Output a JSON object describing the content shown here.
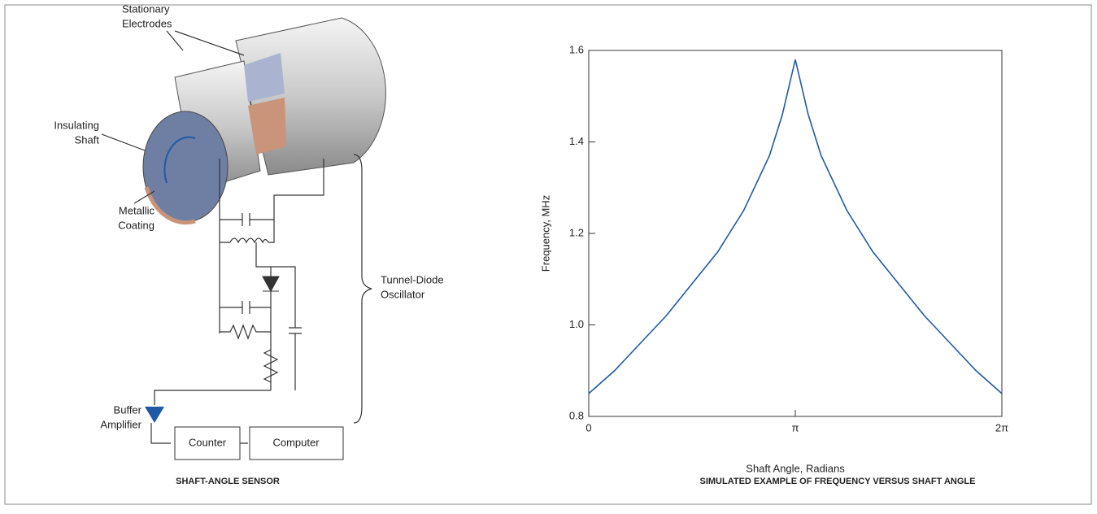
{
  "diagram": {
    "labels": {
      "stationary_electrodes": [
        "Stationary",
        "Electrodes"
      ],
      "insulating_shaft": [
        "Insulating",
        "Shaft"
      ],
      "metallic_coating": [
        "Metallic",
        "Coating"
      ],
      "tunnel_diode_oscillator": [
        "Tunnel-Diode",
        "Oscillator"
      ],
      "buffer_amplifier": [
        "Buffer",
        "Amplifier"
      ],
      "counter": "Counter",
      "computer": "Computer"
    },
    "caption": "SHAFT-ANGLE SENSOR"
  },
  "chart_data": {
    "type": "line",
    "caption": "SIMULATED EXAMPLE OF FREQUENCY VERSUS SHAFT ANGLE",
    "xlabel": "Shaft Angle, Radians",
    "ylabel": "Frequency, MHz",
    "x": [
      0,
      0.3927,
      0.7854,
      1.1781,
      1.5708,
      1.9635,
      2.3562,
      2.7489,
      2.9452,
      3.1416,
      3.3379,
      3.5343,
      3.927,
      4.3197,
      4.7124,
      5.1051,
      5.4978,
      5.8905,
      6.2832
    ],
    "values": [
      0.85,
      0.9,
      0.96,
      1.02,
      1.09,
      1.16,
      1.25,
      1.37,
      1.46,
      1.58,
      1.46,
      1.37,
      1.25,
      1.16,
      1.09,
      1.02,
      0.96,
      0.9,
      0.85
    ],
    "color": "#1f5aa6",
    "xlim": [
      0,
      6.2832
    ],
    "xticks": [
      0,
      {
        "value": 3.1416,
        "label": "π"
      },
      {
        "value": 6.2832,
        "label": "2π"
      }
    ],
    "ylim": [
      0.8,
      1.6
    ],
    "yticks": [
      0.8,
      {
        "value": 1.0,
        "label": "1.0"
      },
      1.2,
      1.4,
      1.6
    ]
  }
}
